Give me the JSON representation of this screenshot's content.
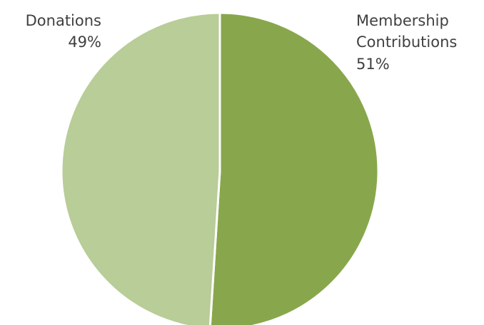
{
  "chart_data": {
    "type": "pie",
    "slices": [
      {
        "label_lines": [
          "Membership",
          "Contributions"
        ],
        "value": 51,
        "value_label": "51%",
        "color": "#88a74c"
      },
      {
        "label_lines": [
          "Donations"
        ],
        "value": 49,
        "value_label": "49%",
        "color": "#b8cd97"
      }
    ],
    "start": "top, clockwise",
    "separator_color": "#ffffff",
    "legend": "none"
  }
}
